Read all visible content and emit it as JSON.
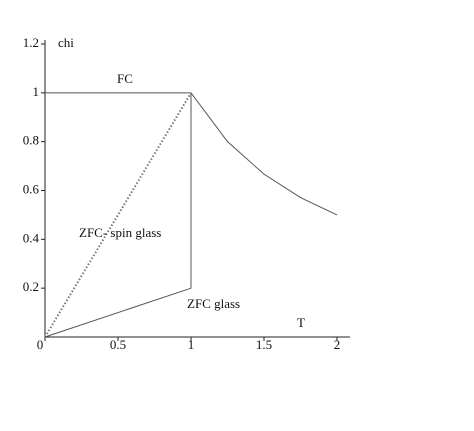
{
  "chart_data": {
    "type": "line",
    "x_label": "T",
    "y_label": "chi",
    "series": [
      {
        "name": "FC",
        "color": "#555555",
        "style": "solid",
        "x": [
          0,
          1,
          1.25,
          1.5,
          1.75,
          2
        ],
        "values": [
          1,
          1,
          0.8,
          0.667,
          0.571,
          0.5
        ]
      },
      {
        "name": "ZFC- spin glass",
        "color": "#777777",
        "style": "dotted",
        "x": [
          0,
          1
        ],
        "values": [
          0,
          1
        ]
      },
      {
        "name": "ZFC  glass",
        "color": "#555555",
        "style": "solid",
        "x": [
          0,
          1,
          1
        ],
        "values": [
          0,
          0.2,
          1
        ]
      }
    ],
    "xlim": [
      0,
      2
    ],
    "xticks": [
      0,
      0.5,
      1,
      1.5,
      2
    ],
    "ylim": [
      0,
      1.2
    ],
    "yticks": [
      0.2,
      0.4,
      0.6,
      0.8,
      1,
      1.2
    ],
    "grid": false
  }
}
